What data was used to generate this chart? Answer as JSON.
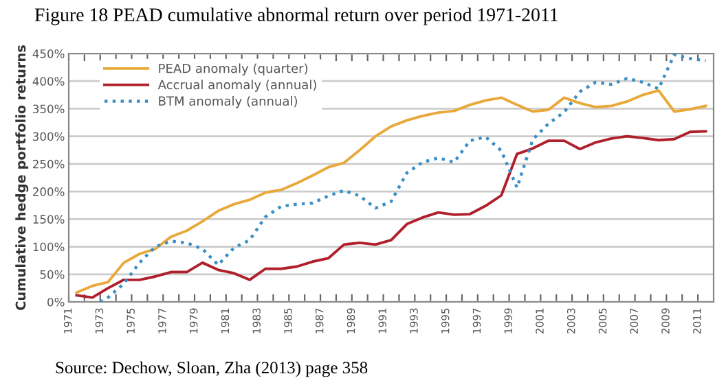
{
  "chart_data": {
    "type": "line",
    "title": "Figure 18 PEAD cumulative abnormal return over period 1971-2011",
    "ylabel": "Cumulative hedge portfolio returns",
    "annotations": [
      "Source: Dechow, Sloan, Zha (2013) page 358"
    ],
    "x": [
      1971.5,
      1972.5,
      1973.5,
      1974.5,
      1975.5,
      1976.5,
      1977.5,
      1978.5,
      1979.5,
      1980.5,
      1981.5,
      1982.5,
      1983.5,
      1984.5,
      1985.5,
      1986.5,
      1987.5,
      1988.5,
      1989.5,
      1990.5,
      1991.5,
      1992.5,
      1993.5,
      1994.5,
      1995.5,
      1996.5,
      1997.5,
      1998.5,
      1999.5,
      2000.5,
      2001.5,
      2002.5,
      2003.5,
      2004.5,
      2005.5,
      2006.5,
      2007.5,
      2008.5,
      2009.5,
      2010.5,
      2011.5
    ],
    "series": [
      {
        "name": "PEAD anomaly (quarter)",
        "color": "#e8a93a",
        "line_style": "solid",
        "values": [
          17,
          29,
          36,
          71,
          87,
          96,
          118,
          129,
          146,
          165,
          177,
          185,
          198,
          203,
          215,
          229,
          244,
          252,
          275,
          300,
          318,
          329,
          337,
          343,
          346,
          357,
          365,
          370,
          357,
          345,
          348,
          370,
          360,
          353,
          355,
          363,
          375,
          383,
          345,
          349,
          355
        ]
      },
      {
        "name": "Accrual anomaly (annual)",
        "color": "#b0202c",
        "line_style": "solid",
        "values": [
          12,
          8,
          25,
          40,
          40,
          46,
          54,
          54,
          71,
          58,
          52,
          40,
          60,
          60,
          64,
          73,
          79,
          104,
          107,
          104,
          112,
          141,
          153,
          162,
          158,
          159,
          174,
          193,
          268,
          278,
          292,
          292,
          277,
          289,
          296,
          300,
          297,
          293,
          295,
          308,
          309
        ]
      },
      {
        "name": "BTM anomaly (annual)",
        "color": "#3b8fc4",
        "line_style": "dotted",
        "x": [
          1973,
          1973.5,
          1974.5,
          1975.5,
          1976.5,
          1977.5,
          1978.5,
          1979.5,
          1980.5,
          1981.5,
          1982.5,
          1983.5,
          1984.5,
          1985.5,
          1986.5,
          1987.5,
          1988.5,
          1989.5,
          1990.5,
          1991.5,
          1992.5,
          1993.5,
          1994.5,
          1995.5,
          1996.5,
          1997.5,
          1998.5,
          1999.5,
          2000.5,
          2001.5,
          2002.5,
          2003.5,
          2004.5,
          2005.5,
          2006.5,
          2007.5,
          2008.5,
          2009.5,
          2010.5,
          2011.5
        ],
        "values": [
          0,
          8,
          33,
          71,
          100,
          110,
          107,
          96,
          67,
          98,
          112,
          154,
          173,
          177,
          179,
          192,
          202,
          192,
          170,
          182,
          234,
          253,
          261,
          253,
          292,
          299,
          274,
          207,
          294,
          323,
          344,
          381,
          398,
          394,
          405,
          398,
          386,
          448,
          441,
          437
        ]
      }
    ],
    "xlim": [
      1971,
      2012
    ],
    "xticks": [
      1971,
      {
        "value": 1972,
        "label": null
      },
      1973,
      {
        "value": 1974,
        "label": null
      },
      1975,
      {
        "value": 1976,
        "label": null
      },
      1977,
      {
        "value": 1978,
        "label": null
      },
      1979,
      {
        "value": 1980,
        "label": null
      },
      1981,
      {
        "value": 1982,
        "label": null
      },
      1983,
      {
        "value": 1984,
        "label": null
      },
      1985,
      {
        "value": 1986,
        "label": null
      },
      1987,
      {
        "value": 1988,
        "label": null
      },
      1989,
      {
        "value": 1990,
        "label": null
      },
      1991,
      {
        "value": 1992,
        "label": null
      },
      1993,
      {
        "value": 1994,
        "label": null
      },
      1995,
      {
        "value": 1996,
        "label": null
      },
      1997,
      {
        "value": 1998,
        "label": null
      },
      1999,
      {
        "value": 2000,
        "label": null
      },
      2001,
      {
        "value": 2002,
        "label": null
      },
      2003,
      {
        "value": 2004,
        "label": null
      },
      2005,
      {
        "value": 2006,
        "label": null
      },
      2007,
      {
        "value": 2008,
        "label": null
      },
      2009,
      {
        "value": 2010,
        "label": null
      },
      2011
    ],
    "ylim": [
      0,
      450
    ],
    "yticks": [
      {
        "value": 0,
        "label": "0%"
      },
      {
        "value": 50,
        "label": "50%"
      },
      {
        "value": 100,
        "label": "100%"
      },
      {
        "value": 150,
        "label": "150%"
      },
      {
        "value": 200,
        "label": "200%"
      },
      {
        "value": 250,
        "label": "250%"
      },
      {
        "value": 300,
        "label": "300%"
      },
      {
        "value": 350,
        "label": "350%"
      },
      {
        "value": 400,
        "label": "400%"
      },
      {
        "value": 450,
        "label": "450%"
      }
    ],
    "grid": "y",
    "legend": "top left"
  }
}
